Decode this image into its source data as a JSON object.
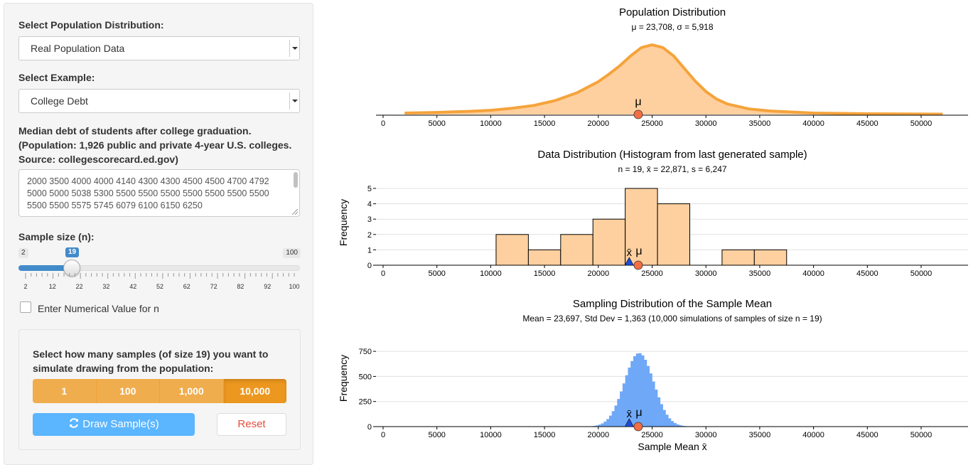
{
  "sidebar": {
    "pop_label": "Select Population Distribution:",
    "pop_value": "Real Population Data",
    "example_label": "Select Example:",
    "example_value": "College Debt",
    "desc_line1": "Median debt of students after college graduation.",
    "desc_line2": "(Population: 1,926 public and private 4-year U.S. colleges.",
    "desc_line3": "Source: collegescorecard.ed.gov)",
    "data_text": "2000 3500 4000 4000 4140 4300 4300 4500 4500 4700 4792 5000 5000 5038 5300 5500 5500 5500 5500 5500 5500 5500 5500 5500 5575 5745 6079 6100 6150 6250",
    "sample_size_label": "Sample size (n):",
    "slider_min": "2",
    "slider_max": "100",
    "slider_value": "19",
    "slider_value_num": 19,
    "slider_ticks": [
      "2",
      "12",
      "22",
      "32",
      "42",
      "52",
      "62",
      "72",
      "82",
      "92",
      "100"
    ],
    "enter_value_label": "Enter Numerical Value for n",
    "samples_question": "Select how many samples (of size 19) you want to simulate drawing from the population:",
    "sample_options": [
      "1",
      "100",
      "1,000",
      "10,000"
    ],
    "active_option": "10,000",
    "draw_label": "Draw Sample(s)",
    "reset_label": "Reset"
  },
  "colors": {
    "orange_fill": "#ffd09f",
    "orange_line": "#f5a33b",
    "bar_fill": "#ffd09f",
    "blue_bars": "#6fa8f7",
    "mu_marker": "#f46d43",
    "xbar_marker": "#1f4bd8"
  },
  "chart_data": [
    {
      "type": "area",
      "title": "Population Distribution",
      "subtitle": "μ = 23,708, σ = 5,918",
      "x_ticks": [
        "0",
        "5000",
        "10000",
        "15000",
        "20000",
        "25000",
        "30000",
        "35000",
        "40000",
        "45000",
        "50000"
      ],
      "xlim": [
        0,
        55000
      ],
      "marker_label": "μ",
      "mu": 23708,
      "curve_x": [
        2000,
        5000,
        8000,
        10000,
        12000,
        14000,
        16000,
        18000,
        20000,
        21000,
        22000,
        23000,
        24000,
        25000,
        26000,
        27000,
        28000,
        29000,
        30000,
        31000,
        32000,
        34000,
        36000,
        40000,
        45000,
        52000
      ],
      "curve_y": [
        0.02,
        0.03,
        0.045,
        0.06,
        0.09,
        0.13,
        0.2,
        0.31,
        0.47,
        0.58,
        0.7,
        0.84,
        0.96,
        1.0,
        0.96,
        0.84,
        0.66,
        0.48,
        0.33,
        0.22,
        0.15,
        0.08,
        0.05,
        0.02,
        0.01,
        0.005
      ]
    },
    {
      "type": "bar",
      "title": "Data Distribution (Histogram from last generated sample)",
      "subtitle": "n = 19,  x̄ = 22,871,  s = 6,247",
      "ylabel": "Frequency",
      "y_ticks": [
        "0",
        "1",
        "2",
        "3",
        "4",
        "5"
      ],
      "ylim": [
        0,
        5
      ],
      "x_ticks": [
        "0",
        "5000",
        "10000",
        "15000",
        "20000",
        "25000",
        "30000",
        "35000",
        "40000",
        "45000",
        "50000"
      ],
      "xlim": [
        0,
        55000
      ],
      "bin_edges": [
        10500,
        13500,
        16500,
        19500,
        22500,
        25500,
        28500,
        31500,
        34500,
        37500
      ],
      "counts": [
        2,
        1,
        2,
        3,
        5,
        4,
        0,
        1,
        1
      ],
      "xbar": 22871,
      "mu": 23708,
      "xbar_label": "x̄",
      "mu_label": "μ"
    },
    {
      "type": "bar",
      "title": "Sampling Distribution of the Sample Mean",
      "subtitle": "Mean = 23,697, Std Dev = 1,363  (10,000 simulations of samples of size n = 19)",
      "ylabel": "Frequency",
      "xlabel": "Sample Mean x̄",
      "y_ticks": [
        "0",
        "250",
        "500",
        "750"
      ],
      "ylim": [
        0,
        850
      ],
      "x_ticks": [
        "0",
        "5000",
        "10000",
        "15000",
        "20000",
        "25000",
        "30000",
        "35000",
        "40000",
        "45000",
        "50000"
      ],
      "xlim": [
        0,
        55000
      ],
      "mean": 23697,
      "sd": 1363,
      "n_sims": 10000,
      "bin_width": 250,
      "xbar": 22871,
      "mu": 23708,
      "xbar_label": "x̄",
      "mu_label": "μ"
    }
  ]
}
